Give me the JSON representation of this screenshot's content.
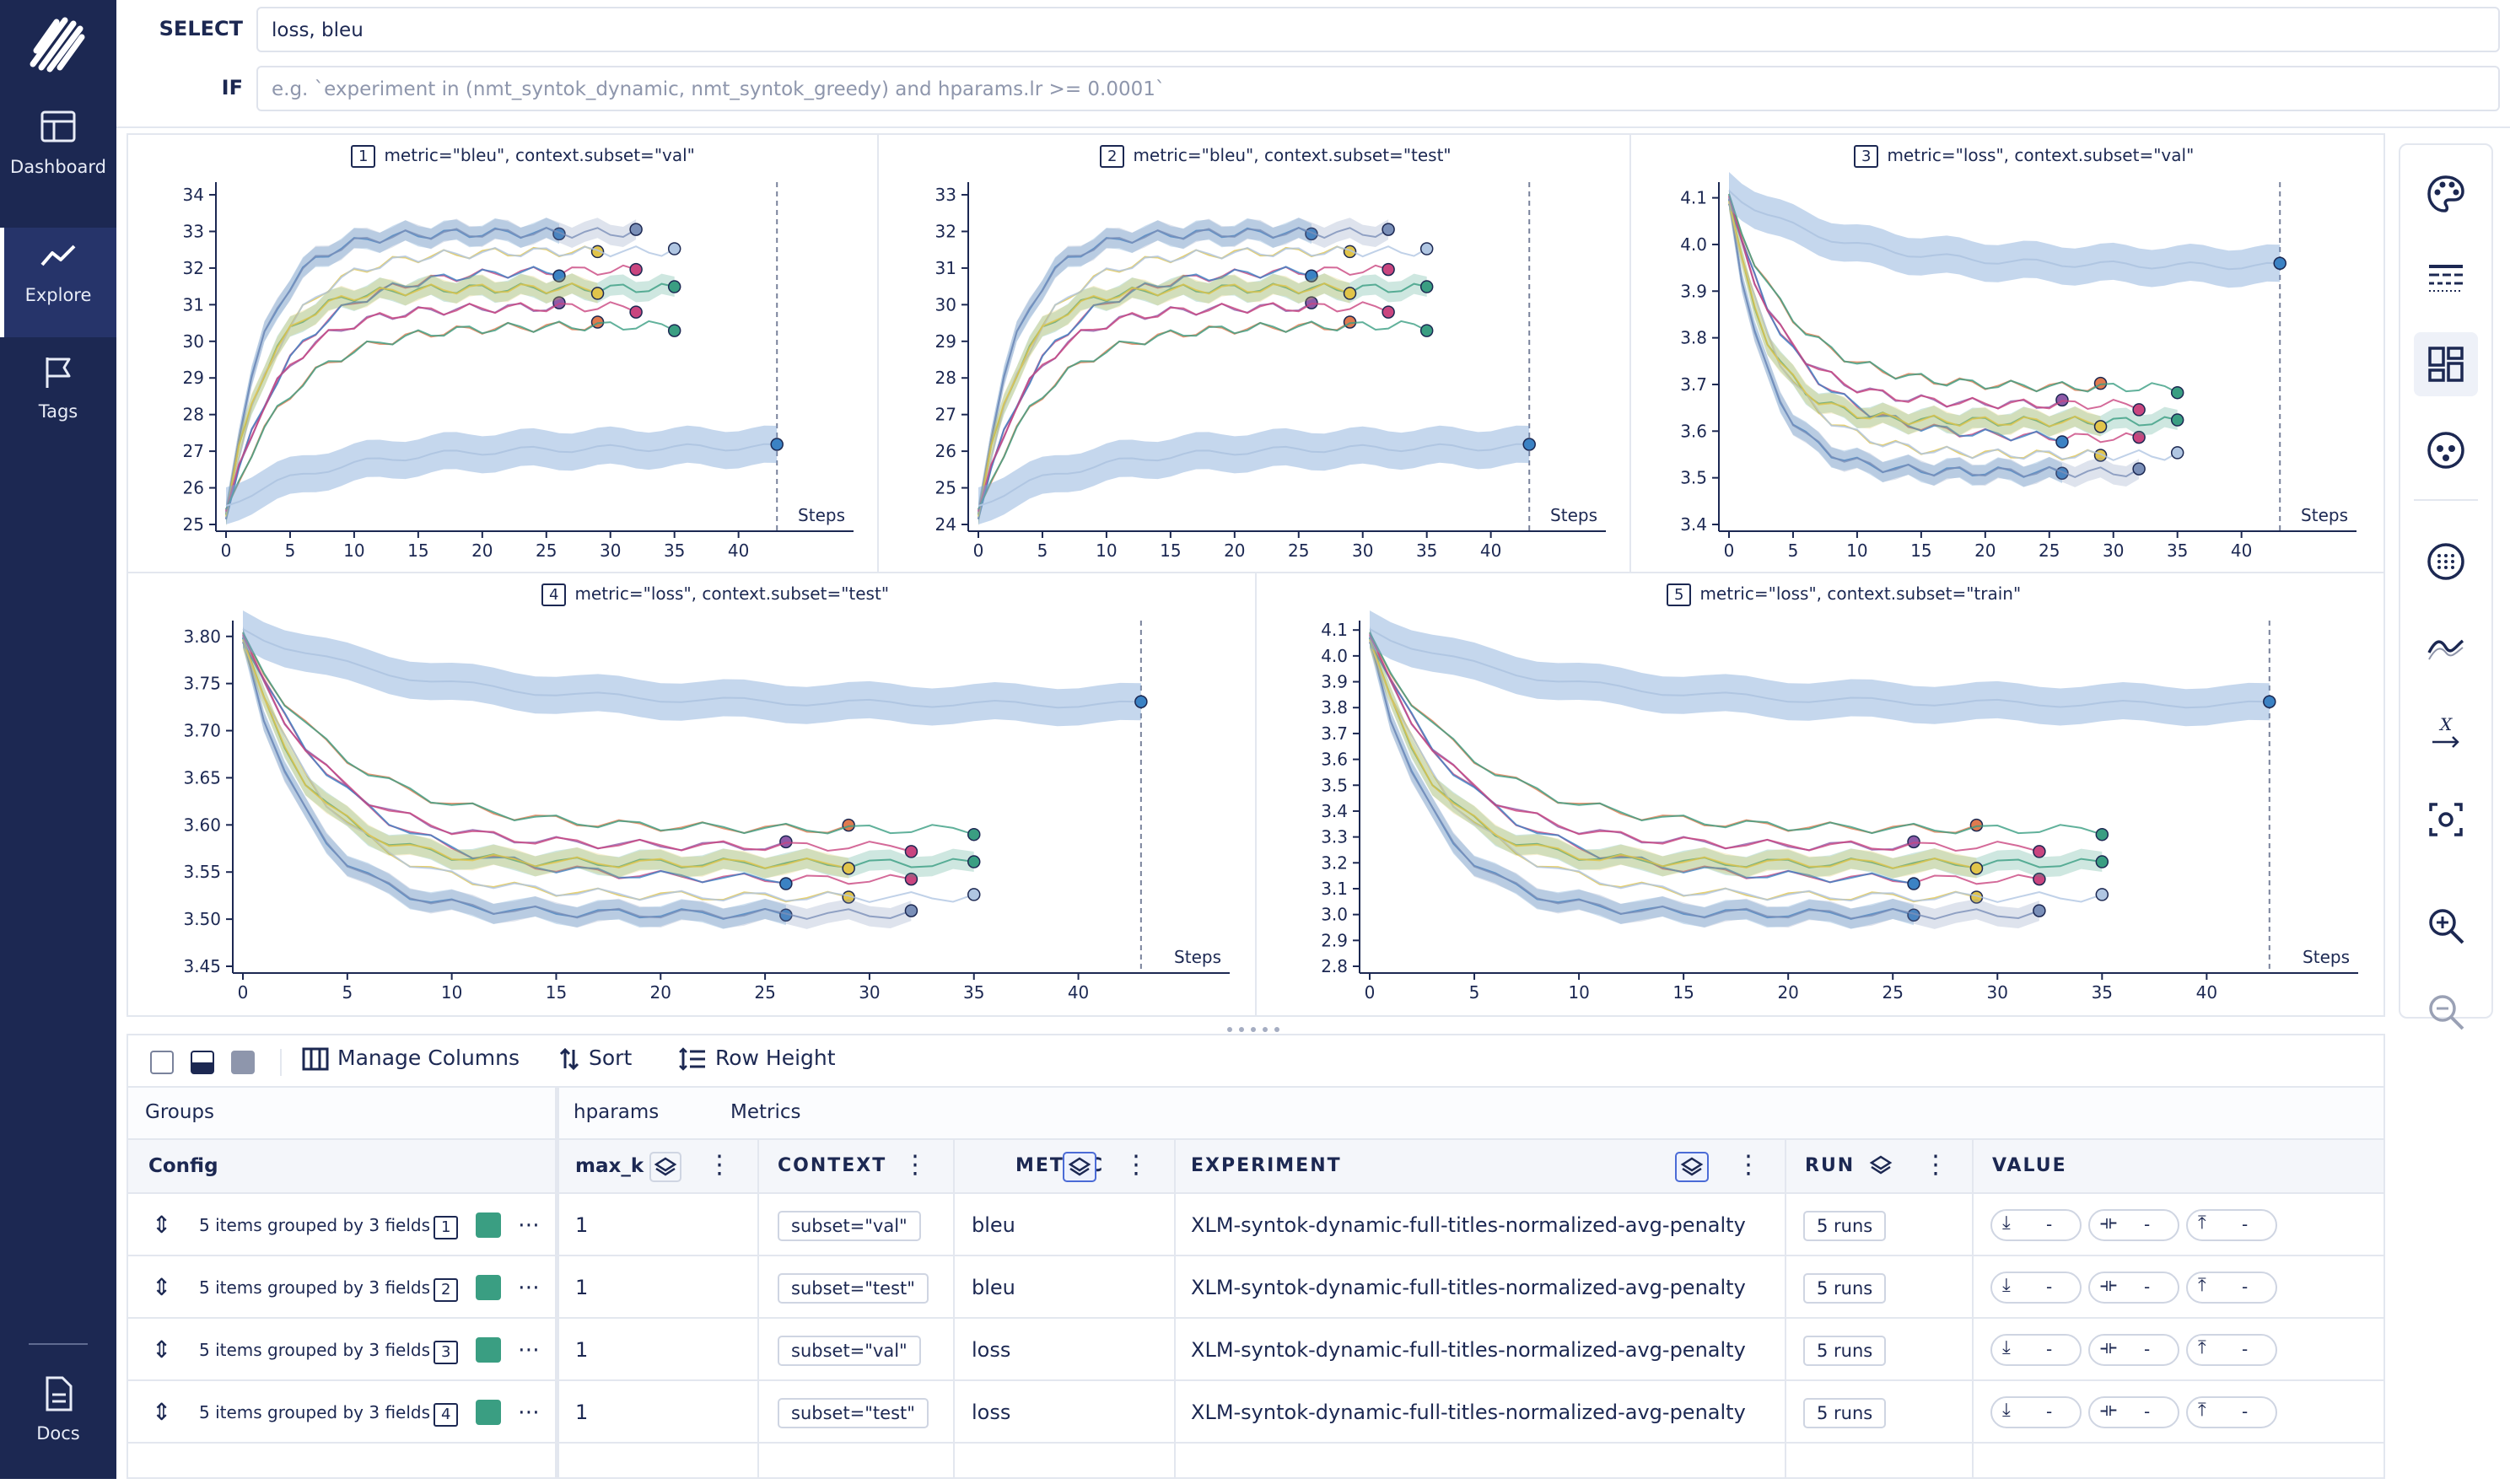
{
  "nav": {
    "items": [
      {
        "label": "Dashboard",
        "icon": "dashboard-icon"
      },
      {
        "label": "Explore",
        "icon": "explore-icon"
      },
      {
        "label": "Tags",
        "icon": "tags-icon"
      }
    ],
    "docs_label": "Docs",
    "accent": "#1c2852"
  },
  "query": {
    "select_label": "SELECT",
    "select_value": "loss, bleu",
    "if_label": "IF",
    "if_placeholder": "e.g. `experiment in (nmt_syntok_dynamic, nmt_syntok_greedy) and hparams.lr >= 0.0001`"
  },
  "panels": [
    {
      "index": "1",
      "title": "metric=\"bleu\", context.subset=\"val\"",
      "x_label": "Steps",
      "x_ticks": [
        "0",
        "5",
        "10",
        "15",
        "20",
        "25",
        "30",
        "35",
        "40"
      ],
      "y_ticks": [
        "25",
        "26",
        "27",
        "28",
        "29",
        "30",
        "31",
        "32",
        "33",
        "34"
      ]
    },
    {
      "index": "2",
      "title": "metric=\"bleu\", context.subset=\"test\"",
      "x_label": "Steps",
      "x_ticks": [
        "0",
        "5",
        "10",
        "15",
        "20",
        "25",
        "30",
        "35",
        "40"
      ],
      "y_ticks": [
        "24",
        "25",
        "26",
        "27",
        "28",
        "29",
        "30",
        "31",
        "32",
        "33"
      ]
    },
    {
      "index": "3",
      "title": "metric=\"loss\", context.subset=\"val\"",
      "x_label": "Steps",
      "x_ticks": [
        "0",
        "5",
        "10",
        "15",
        "20",
        "25",
        "30",
        "35",
        "40"
      ],
      "y_ticks": [
        "3.4",
        "3.5",
        "3.6",
        "3.7",
        "3.8",
        "3.9",
        "4.0",
        "4.1"
      ]
    },
    {
      "index": "4",
      "title": "metric=\"loss\", context.subset=\"test\"",
      "x_label": "Steps",
      "x_ticks": [
        "0",
        "5",
        "10",
        "15",
        "20",
        "25",
        "30",
        "35",
        "40"
      ],
      "y_ticks": [
        "3.45",
        "3.50",
        "3.55",
        "3.60",
        "3.65",
        "3.70",
        "3.75",
        "3.80"
      ]
    },
    {
      "index": "5",
      "title": "metric=\"loss\", context.subset=\"train\"",
      "x_label": "Steps",
      "x_ticks": [
        "0",
        "5",
        "10",
        "15",
        "20",
        "25",
        "30",
        "35",
        "40"
      ],
      "y_ticks": [
        "2.8",
        "2.9",
        "3.0",
        "3.1",
        "3.2",
        "3.3",
        "3.4",
        "3.5",
        "3.6",
        "3.7",
        "3.8",
        "3.9",
        "4.0",
        "4.1"
      ]
    }
  ],
  "series_colors": [
    "#3b82c4",
    "#e1c44a",
    "#c9457f",
    "#3a9e82",
    "#8e5aa8",
    "#e07a4f",
    "#7a8fb8",
    "#b0c6e2"
  ],
  "toolbar": {
    "manage_columns": "Manage Columns",
    "sort": "Sort",
    "row_height": "Row Height"
  },
  "table": {
    "group_headers": {
      "groups": "Groups",
      "hparams": "hparams",
      "metrics": "Metrics"
    },
    "columns": {
      "config": "Config",
      "max_k": "max_k",
      "context": "CONTEXT",
      "metric": "METRIC",
      "experiment": "EXPERIMENT",
      "run": "RUN",
      "value": "VALUE"
    },
    "rows": [
      {
        "group": "5 items grouped by 3 fields",
        "idx": "1",
        "max_k": "1",
        "context": "subset=\"val\"",
        "metric": "bleu",
        "experiment": "XLM-syntok-dynamic-full-titles-normalized-avg-penalty",
        "runs": "5 runs",
        "v1": "-",
        "v2": "-",
        "v3": "-"
      },
      {
        "group": "5 items grouped by 3 fields",
        "idx": "2",
        "max_k": "1",
        "context": "subset=\"test\"",
        "metric": "bleu",
        "experiment": "XLM-syntok-dynamic-full-titles-normalized-avg-penalty",
        "runs": "5 runs",
        "v1": "-",
        "v2": "-",
        "v3": "-"
      },
      {
        "group": "5 items grouped by 3 fields",
        "idx": "3",
        "max_k": "1",
        "context": "subset=\"val\"",
        "metric": "loss",
        "experiment": "XLM-syntok-dynamic-full-titles-normalized-avg-penalty",
        "runs": "5 runs",
        "v1": "-",
        "v2": "-",
        "v3": "-"
      },
      {
        "group": "5 items grouped by 3 fields",
        "idx": "4",
        "max_k": "1",
        "context": "subset=\"test\"",
        "metric": "loss",
        "experiment": "XLM-syntok-dynamic-full-titles-normalized-avg-penalty",
        "runs": "5 runs",
        "v1": "-",
        "v2": "-",
        "v3": "-"
      }
    ]
  }
}
